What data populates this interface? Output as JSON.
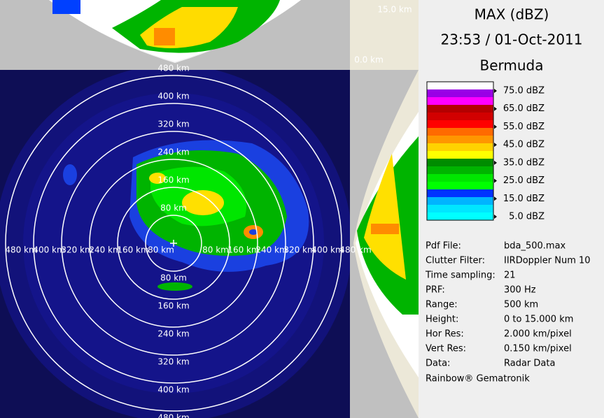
{
  "header": {
    "title": "MAX (dBZ)",
    "time": "23:53 / 01-Oct-2011",
    "site": "Bermuda"
  },
  "ring_labels": {
    "north": [
      "480 km",
      "400 km",
      "320 km",
      "240 km",
      "160 km",
      "80 km"
    ],
    "south": [
      "80 km",
      "160 km",
      "240 km",
      "320 km",
      "400 km",
      "480 km"
    ],
    "west": [
      "480 km",
      "400 km",
      "320 km",
      "240 km",
      "160 km",
      "80 km"
    ],
    "east": [
      "80 km",
      "160 km",
      "240 km",
      "320 km",
      "400 km",
      "480 km"
    ]
  },
  "section_labels": {
    "top_max": "15.0 km",
    "top_min": "0.0 km"
  },
  "legend": {
    "labels": [
      "75.0 dBZ",
      "65.0 dBZ",
      "55.0 dBZ",
      "45.0 dBZ",
      "35.0 dBZ",
      "25.0 dBZ",
      "15.0 dBZ",
      "5.0 dBZ"
    ],
    "colors": [
      "#ffffff",
      "#9a00e6",
      "#ff00ff",
      "#b40000",
      "#d20000",
      "#ff0000",
      "#ff6a00",
      "#ff9600",
      "#ffd200",
      "#ffff00",
      "#008c00",
      "#00b400",
      "#00e600",
      "#00ff00",
      "#0032ff",
      "#00b4ff",
      "#00e6ff",
      "#00ffff"
    ]
  },
  "info": {
    "rows": [
      [
        "Pdf File:",
        "bda_500.max"
      ],
      [
        "Clutter Filter:",
        "IIRDoppler Num 10"
      ],
      [
        "Time sampling:",
        "21"
      ],
      [
        "PRF:",
        "300 Hz"
      ],
      [
        "Range:",
        "500 km"
      ],
      [
        "Height:",
        "0 to 15.000 km"
      ],
      [
        "Hor Res:",
        "2.000 km/pixel"
      ],
      [
        "Vert Res:",
        "0.150 km/pixel"
      ],
      [
        "Data:",
        "Radar Data"
      ]
    ]
  },
  "footer": "Rainbow® Gematronik"
}
